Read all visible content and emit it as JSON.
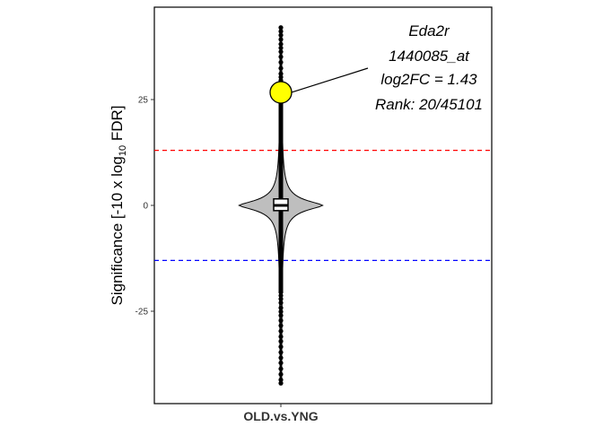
{
  "chart_data": {
    "type": "violin",
    "categories": [
      "OLD.vs.YNG"
    ],
    "ylabel": {
      "main": "Significance [-10 x log",
      "sub": "10",
      "tail": " FDR]"
    },
    "ylim": [
      -47,
      47
    ],
    "y_ticks": [
      -25,
      0,
      25
    ],
    "thresholds": [
      {
        "value": 13,
        "color": "#ff0000"
      },
      {
        "value": -13,
        "color": "#0000ff"
      }
    ],
    "distribution": {
      "min": -42,
      "max": 42,
      "box": {
        "q1": -0.6,
        "median": 0,
        "q3": 0.9
      },
      "density_halfwidth_at_0": 46
    },
    "outlier_points": [
      42,
      41.1,
      40.2,
      39.2,
      38.1,
      37.2,
      36.3,
      35.1,
      33.8,
      32.4,
      31.1,
      30.3,
      29.5,
      28.6,
      27.9,
      27.2,
      -20.5,
      -21.3,
      -22.1,
      -23.0,
      -24.2,
      -25.1,
      -26.0,
      -27.2,
      -28.4,
      -29.7,
      -31.0,
      -32.1,
      -33.4,
      -34.7,
      -36.0,
      -37.2,
      -38.6,
      -39.9,
      -41.2,
      -42.0
    ],
    "highlight": {
      "gene": "Eda2r",
      "probe": "1440085_at",
      "log2fc_text": "log2FC = 1.43",
      "rank_text": "Rank: 20/45101",
      "y": 26.7,
      "color": "#ffff00"
    }
  }
}
